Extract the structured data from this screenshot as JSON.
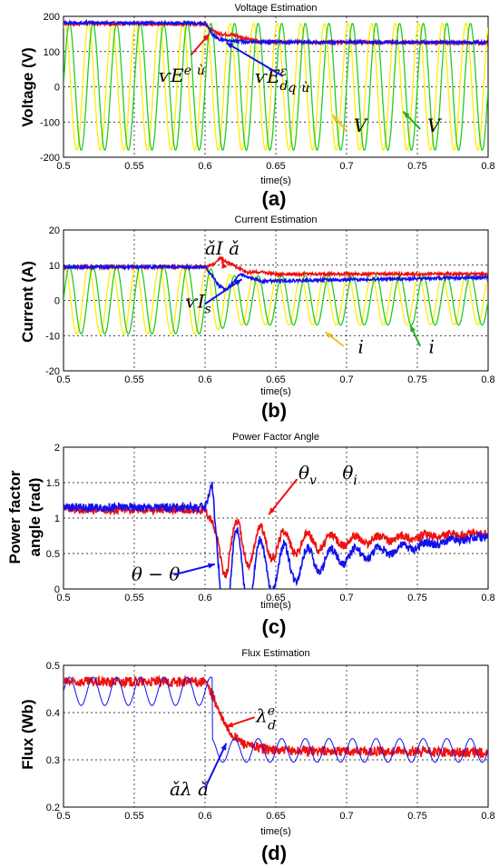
{
  "chart_data": [
    {
      "type": "line",
      "title": "Voltage Estimation",
      "xlabel": "time(s)",
      "ylabel": "Voltage (V)",
      "panel_label": "(a)",
      "xlim": [
        0.5,
        0.8
      ],
      "ylim": [
        -200,
        200
      ],
      "xticks": [
        "0.5",
        "0.55",
        "0.6",
        "0.65",
        "0.7",
        "0.75",
        "0.8"
      ],
      "yticks": [
        "-200",
        "-100",
        "0",
        "100",
        "200"
      ],
      "grid": true,
      "series": [
        {
          "color": "#ffee00",
          "values_desc": "sinusoid",
          "x_start": 0.5,
          "x_end": 0.8,
          "amplitude": 180,
          "frequency_hz": 60,
          "phase": 1.2
        },
        {
          "color": "#22cc22",
          "values_desc": "sinusoid",
          "x_start": 0.5,
          "x_end": 0.8,
          "amplitude": 180,
          "frequency_hz": 60,
          "phase": 0
        },
        {
          "color": "#ee1111",
          "x": [
            0.5,
            0.6,
            0.605,
            0.61,
            0.62,
            0.63,
            0.64,
            0.65,
            0.8
          ],
          "y": [
            180,
            178,
            160,
            150,
            148,
            135,
            128,
            127,
            125
          ]
        },
        {
          "color": "#1111ee",
          "x": [
            0.5,
            0.6,
            0.605,
            0.61,
            0.62,
            0.63,
            0.65,
            0.8
          ],
          "y": [
            182,
            180,
            150,
            135,
            130,
            128,
            127,
            126
          ]
        }
      ],
      "annotations": [
        {
          "text": "ѵE",
          "sup": "e",
          "tail": "ѝ",
          "x": 0.567,
          "y": 14
        },
        {
          "text": "ѵE",
          "sub": "d",
          "sup": "ε",
          "sub2": "q",
          "tail": "ѝ",
          "x": 0.635,
          "y": 12
        },
        {
          "text": "V",
          "x": 0.705,
          "y": -128
        },
        {
          "text": "V",
          "x": 0.757,
          "y": -128
        }
      ]
    },
    {
      "type": "line",
      "title": "Current Estimation",
      "xlabel": "time(s)",
      "ylabel": "Current (A)",
      "panel_label": "(b)",
      "xlim": [
        0.5,
        0.8
      ],
      "ylim": [
        -20,
        20
      ],
      "xticks": [
        "0.5",
        "0.55",
        "0.6",
        "0.65",
        "0.7",
        "0.75",
        "0.8"
      ],
      "yticks": [
        "-20",
        "-10",
        "0",
        "10",
        "20"
      ],
      "grid": true,
      "series": [
        {
          "color": "#ffee00",
          "values_desc": "sinusoid",
          "x_start": 0.5,
          "x_end": 0.8,
          "amplitude": 9.5,
          "amplitude_after_0p62": 7,
          "frequency_hz": 60,
          "phase": 1.2
        },
        {
          "color": "#22cc22",
          "values_desc": "sinusoid",
          "x_start": 0.5,
          "x_end": 0.8,
          "amplitude": 9.5,
          "amplitude_after_0p62": 7,
          "frequency_hz": 60,
          "phase": 0
        },
        {
          "color": "#ee1111",
          "x": [
            0.5,
            0.6,
            0.605,
            0.61,
            0.62,
            0.63,
            0.64,
            0.65,
            0.8
          ],
          "y": [
            9.5,
            9.5,
            10,
            12,
            10,
            8,
            8,
            7.5,
            7.5
          ]
        },
        {
          "color": "#1111ee",
          "x": [
            0.5,
            0.6,
            0.605,
            0.61,
            0.615,
            0.62,
            0.625,
            0.63,
            0.64,
            0.8
          ],
          "y": [
            9.5,
            9.5,
            7,
            4,
            3,
            5,
            7.5,
            6.5,
            5.5,
            6.5
          ]
        }
      ],
      "annotations": [
        {
          "text": "ǎI ǎ",
          "x": 0.6,
          "y": 13
        },
        {
          "text": "ѵI",
          "sub": "s",
          "x": 0.586,
          "y": -2
        },
        {
          "text": "i",
          "x": 0.708,
          "y": -15
        },
        {
          "text": "i",
          "x": 0.758,
          "y": -15
        }
      ]
    },
    {
      "type": "line",
      "title": "Power Factor Angle",
      "xlabel": "time(s)",
      "ylabel": "Power factor angle (rad)",
      "ylabel_lines": [
        "Power factor",
        "angle (rad)"
      ],
      "panel_label": "(c)",
      "xlim": [
        0.5,
        0.8
      ],
      "ylim": [
        0,
        2
      ],
      "xticks": [
        "0.5",
        "0.55",
        "0.6",
        "0.65",
        "0.7",
        "0.75",
        "0.8"
      ],
      "yticks": [
        "0",
        "0.5",
        "1",
        "1.5",
        "2"
      ],
      "grid": true,
      "series": [
        {
          "color": "#ee1111",
          "x": [
            0.5,
            0.6,
            0.605,
            0.61,
            0.8
          ],
          "y": [
            1.12,
            1.12,
            0.95,
            0.6,
            0.78
          ],
          "oscillation": {
            "start": 0.61,
            "period": 0.0167,
            "amplitude": 0.45,
            "decay": 0.05
          }
        },
        {
          "color": "#1111ee",
          "x": [
            0.5,
            0.6,
            0.605,
            0.61,
            0.8
          ],
          "y": [
            1.15,
            1.15,
            1.5,
            0.2,
            0.75
          ],
          "oscillation": {
            "start": 0.61,
            "period": 0.0167,
            "amplitude": 0.8,
            "decay": 0.045
          }
        }
      ],
      "annotations": [
        {
          "text": "θ",
          "sub": "v",
          "x": 0.666,
          "y": 1.55
        },
        {
          "text": "θ",
          "sub": "i",
          "x": 0.697,
          "y": 1.55
        },
        {
          "text": "θ  − θ",
          "x": 0.548,
          "y": 0.12
        }
      ]
    },
    {
      "type": "line",
      "title": "Flux Estimation",
      "xlabel": "time(s)",
      "ylabel": "Flux (Wb)",
      "panel_label": "(d)",
      "xlim": [
        0.5,
        0.8
      ],
      "ylim": [
        0.2,
        0.5
      ],
      "xticks": [
        "0.5",
        "0.55",
        "0.6",
        "0.65",
        "0.7",
        "0.75",
        "0.8"
      ],
      "yticks": [
        "0.2",
        "0.3",
        "0.4",
        "0.5"
      ],
      "grid": true,
      "series": [
        {
          "color": "#ee1111",
          "x": [
            0.5,
            0.6,
            0.605,
            0.61,
            0.615,
            0.62,
            0.63,
            0.65,
            0.8
          ],
          "y": [
            0.465,
            0.465,
            0.44,
            0.4,
            0.37,
            0.35,
            0.33,
            0.32,
            0.315
          ]
        },
        {
          "color": "#1111ee",
          "values_desc": "oscillation",
          "mean_before": 0.445,
          "amp_before": 0.03,
          "mean_after": 0.32,
          "amp_after": 0.025,
          "frequency_hz": 60
        }
      ],
      "annotations": [
        {
          "text": "λ",
          "sub": "d",
          "sup": "e",
          "x": 0.636,
          "y": 0.38
        },
        {
          "text": "ǎλ ǎ",
          "x": 0.575,
          "y": 0.225
        }
      ]
    }
  ]
}
